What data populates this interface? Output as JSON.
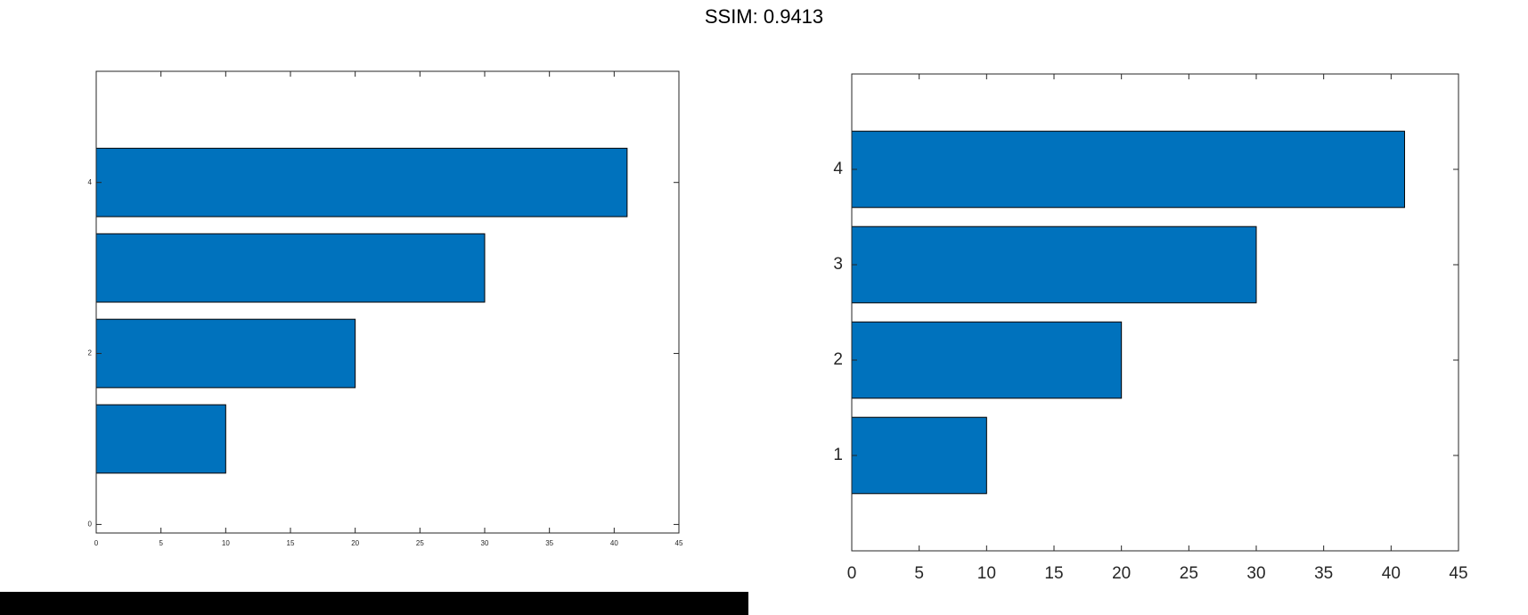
{
  "header": {
    "title": "SSIM: 0.9413"
  },
  "colors": {
    "bar": "#0072BD",
    "axis": "#262626"
  },
  "chart_data": [
    {
      "type": "bar",
      "orientation": "horizontal",
      "title": "",
      "categories": [
        1,
        2,
        3,
        4
      ],
      "values": [
        10,
        20,
        30,
        41
      ],
      "xlim": [
        0,
        45
      ],
      "ylim": [
        -0.1,
        5.3
      ],
      "xticks": [
        0,
        5,
        10,
        15,
        20,
        25,
        30,
        35,
        40,
        45
      ],
      "yticks": [
        0,
        2,
        4
      ],
      "grid": false
    },
    {
      "type": "bar",
      "orientation": "horizontal",
      "title": "",
      "categories": [
        1,
        2,
        3,
        4
      ],
      "values": [
        10,
        20,
        30,
        41
      ],
      "xlim": [
        0,
        45
      ],
      "ylim": [
        0,
        5
      ],
      "xticks": [
        0,
        5,
        10,
        15,
        20,
        25,
        30,
        35,
        40,
        45
      ],
      "yticks": [
        1,
        2,
        3,
        4
      ],
      "grid": false
    }
  ]
}
